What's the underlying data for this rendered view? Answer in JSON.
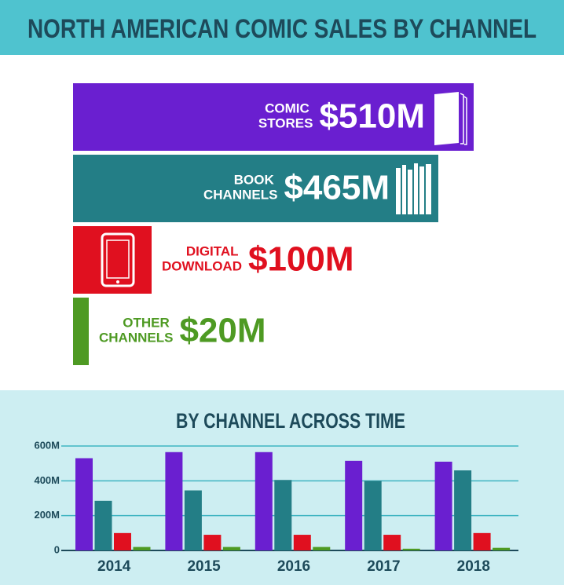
{
  "chart_data": [
    {
      "type": "hbar",
      "title": "NORTH AMERICAN COMIC SALES BY CHANNEL",
      "categories": [
        "COMIC STORES",
        "BOOK CHANNELS",
        "DIGITAL DOWNLOAD",
        "OTHER CHANNELS"
      ],
      "values": [
        510,
        465,
        100,
        20
      ],
      "value_labels": [
        "$510M",
        "$465M",
        "$100M",
        "$20M"
      ],
      "colors": [
        "#6a1fd0",
        "#237e86",
        "#e0101f",
        "#4e9a23"
      ]
    },
    {
      "type": "grouped-bar",
      "title": "BY CHANNEL ACROSS TIME",
      "categories": [
        "2014",
        "2015",
        "2016",
        "2017",
        "2018"
      ],
      "series": [
        {
          "color": "#6a1fd0",
          "values": [
            530,
            565,
            565,
            515,
            510
          ]
        },
        {
          "color": "#237e86",
          "values": [
            285,
            345,
            405,
            400,
            460
          ]
        },
        {
          "color": "#e0101f",
          "values": [
            100,
            90,
            90,
            90,
            100
          ]
        },
        {
          "color": "#4e9a23",
          "values": [
            20,
            20,
            20,
            10,
            15
          ]
        }
      ],
      "ylim": [
        0,
        600
      ],
      "yticks": [
        0,
        {
          "value": 200,
          "label": "200M"
        },
        {
          "value": 400,
          "label": "400M"
        },
        {
          "value": 600,
          "label": "600M"
        }
      ],
      "grid": true
    }
  ]
}
